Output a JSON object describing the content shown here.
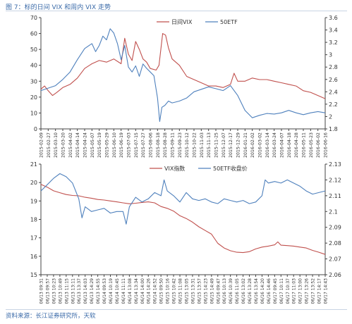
{
  "figure": {
    "title": "图 7：标的日间 VIX 和周内 VIX 走势",
    "source": "资料来源：长江证券研究所，天软"
  },
  "colors": {
    "vix": "#c0504d",
    "etf": "#4f81bd",
    "axis": "#444444",
    "text": "#333333",
    "accent": "#3a6aa8"
  },
  "chart_data": [
    {
      "type": "line",
      "legend_position": "top",
      "grid": false,
      "x_tick_labels": [
        "2015-02-09",
        "2015-02-27",
        "2015-03-10",
        "2015-03-20",
        "2015-04-02",
        "2015-04-14",
        "2015-04-24",
        "2015-05-07",
        "2015-05-19",
        "2015-05-29",
        "2015-06-10",
        "2015-06-19",
        "2015-07-03",
        "2015-07-15",
        "2015-07-27",
        "2015-08-06",
        "2015-08-18",
        "2015-08-28",
        "2015-09-11",
        "2015-09-23",
        "2015-10-12",
        "2015-10-22",
        "2015-11-03",
        "2015-11-13",
        "2015-11-25",
        "2015-12-07",
        "2015-12-17",
        "2015-12-29",
        "2016-01-21",
        "2016-02-02",
        "2016-03-02",
        "2016-03-14",
        "2016-03-24",
        "2016-04-07",
        "2016-04-18",
        "2016-04-28",
        "2016-05-11",
        "2016-05-23",
        "2016-06-02",
        "2016-06-16"
      ],
      "y_left": {
        "min": 0,
        "max": 70,
        "ticks": [
          0,
          10,
          20,
          30,
          40,
          50,
          60,
          70
        ]
      },
      "y_right": {
        "min": 1.8,
        "max": 3.6,
        "ticks": [
          "1.8",
          "2",
          "2.2",
          "2.4",
          "2.6",
          "2.8",
          "3",
          "3.2",
          "3.4",
          "3.6"
        ]
      },
      "series": [
        {
          "name": "日间VIX",
          "axis": "left",
          "values": [
            [
              0,
              25
            ],
            [
              0.5,
              27
            ],
            [
              1,
              24
            ],
            [
              1.6,
              21
            ],
            [
              2.2,
              23
            ],
            [
              3,
              26
            ],
            [
              4,
              28
            ],
            [
              5,
              32
            ],
            [
              6,
              38
            ],
            [
              7,
              41
            ],
            [
              8,
              43
            ],
            [
              9,
              42
            ],
            [
              10,
              44
            ],
            [
              11,
              41
            ],
            [
              11.5,
              57
            ],
            [
              12,
              47
            ],
            [
              12.5,
              43
            ],
            [
              13,
              55
            ],
            [
              13.5,
              50
            ],
            [
              14,
              44
            ],
            [
              14.5,
              42
            ],
            [
              15,
              38
            ],
            [
              15.8,
              37
            ],
            [
              16.2,
              40
            ],
            [
              16.7,
              60
            ],
            [
              17.1,
              59
            ],
            [
              17.5,
              51
            ],
            [
              18,
              44
            ],
            [
              19,
              40
            ],
            [
              20,
              33
            ],
            [
              21,
              31
            ],
            [
              22,
              29
            ],
            [
              23,
              27
            ],
            [
              24,
              27
            ],
            [
              25,
              26
            ],
            [
              26,
              28
            ],
            [
              26.5,
              35
            ],
            [
              27,
              30
            ],
            [
              28,
              30
            ],
            [
              29,
              32
            ],
            [
              30,
              31
            ],
            [
              31,
              31
            ],
            [
              32,
              30
            ],
            [
              33,
              29
            ],
            [
              34,
              28
            ],
            [
              35,
              27
            ],
            [
              36,
              24
            ],
            [
              37,
              23
            ],
            [
              38,
              21
            ],
            [
              39,
              19
            ]
          ]
        },
        {
          "name": "50ETF",
          "axis": "right",
          "values": [
            [
              0,
              2.42
            ],
            [
              1,
              2.46
            ],
            [
              2,
              2.5
            ],
            [
              3,
              2.6
            ],
            [
              4,
              2.72
            ],
            [
              5,
              2.92
            ],
            [
              6,
              3.1
            ],
            [
              7,
              3.18
            ],
            [
              7.5,
              3.05
            ],
            [
              8,
              3.15
            ],
            [
              8.5,
              3.3
            ],
            [
              9,
              3.24
            ],
            [
              9.5,
              3.42
            ],
            [
              10,
              3.35
            ],
            [
              10.5,
              3.18
            ],
            [
              11,
              2.92
            ],
            [
              11.5,
              3.15
            ],
            [
              12,
              2.8
            ],
            [
              12.5,
              2.72
            ],
            [
              13,
              2.82
            ],
            [
              13.5,
              2.65
            ],
            [
              14,
              2.85
            ],
            [
              14.5,
              2.78
            ],
            [
              15,
              2.72
            ],
            [
              15.5,
              2.66
            ],
            [
              16,
              2.3
            ],
            [
              16.3,
              1.92
            ],
            [
              16.6,
              2.15
            ],
            [
              17,
              2.18
            ],
            [
              17.5,
              2.25
            ],
            [
              18,
              2.22
            ],
            [
              19,
              2.25
            ],
            [
              20,
              2.3
            ],
            [
              21,
              2.4
            ],
            [
              22,
              2.44
            ],
            [
              23,
              2.48
            ],
            [
              24,
              2.45
            ],
            [
              25,
              2.42
            ],
            [
              26,
              2.5
            ],
            [
              27,
              2.34
            ],
            [
              28,
              2.1
            ],
            [
              29,
              1.98
            ],
            [
              30,
              2.02
            ],
            [
              31,
              2.05
            ],
            [
              32,
              2.04
            ],
            [
              33,
              2.06
            ],
            [
              34,
              2.1
            ],
            [
              35,
              2.06
            ],
            [
              36,
              2.03
            ],
            [
              37,
              2.06
            ],
            [
              38,
              2.08
            ],
            [
              39,
              2.06
            ]
          ]
        }
      ]
    },
    {
      "type": "line",
      "legend_position": "top",
      "grid": false,
      "x_tick_labels": [
        "06/13 09:31",
        "06/13 09:57",
        "06/13 10:23",
        "06/13 10:49",
        "06/13 11:15",
        "06/13 13:11",
        "06/13 13:37",
        "06/13 14:03",
        "06/13 14:29",
        "06/13 14:55",
        "06/14 09:53",
        "06/14 10:19",
        "06/14 10:45",
        "06/14 11:11",
        "06/14 13:08",
        "06/14 13:34",
        "06/14 14:00",
        "06/14 14:26",
        "06/14 14:52",
        "06/15 09:50",
        "06/15 10:16",
        "06/15 10:42",
        "06/15 11:08",
        "06/15 13:05",
        "06/15 13:31",
        "06/15 13:57",
        "06/15 14:23",
        "06/15 14:49",
        "06/16 09:47",
        "06/16 10:13",
        "06/16 10:39",
        "06/16 11:05",
        "06/16 13:02",
        "06/16 13:28",
        "06/16 13:54",
        "06/16 14:20",
        "06/16 14:46",
        "06/17 09:45",
        "06/17 10:11",
        "06/17 10:37",
        "06/17 11:03",
        "06/17 13:00",
        "06/17 13:26",
        "06/17 13:52",
        "06/17 14:17",
        "06/17 14:43"
      ],
      "y_left": {
        "min": 15,
        "max": 21,
        "ticks": [
          15,
          16,
          17,
          18,
          19,
          20,
          21
        ]
      },
      "y_right": {
        "min": 2.06,
        "max": 2.13,
        "ticks": [
          "2.06",
          "2.07",
          "2.08",
          "2.09",
          "2.1",
          "2.11",
          "2.12",
          "2.13"
        ]
      },
      "series": [
        {
          "name": "VIX指数",
          "axis": "left",
          "values": [
            [
              0,
              19.9
            ],
            [
              1,
              19.75
            ],
            [
              2,
              19.55
            ],
            [
              3,
              19.45
            ],
            [
              4,
              19.35
            ],
            [
              5,
              19.3
            ],
            [
              6,
              19.28
            ],
            [
              7,
              19.2
            ],
            [
              8,
              19.15
            ],
            [
              9,
              19.08
            ],
            [
              10,
              19.05
            ],
            [
              11,
              19.0
            ],
            [
              12,
              18.95
            ],
            [
              13,
              18.9
            ],
            [
              14,
              18.85
            ],
            [
              15,
              18.88
            ],
            [
              16,
              18.92
            ],
            [
              17,
              18.95
            ],
            [
              18,
              18.9
            ],
            [
              19,
              18.7
            ],
            [
              20,
              18.6
            ],
            [
              21,
              18.45
            ],
            [
              22,
              18.2
            ],
            [
              23,
              18.05
            ],
            [
              24,
              17.85
            ],
            [
              25,
              17.6
            ],
            [
              26,
              17.4
            ],
            [
              27,
              17.2
            ],
            [
              28,
              16.7
            ],
            [
              29,
              16.45
            ],
            [
              30,
              16.3
            ],
            [
              31,
              16.22
            ],
            [
              32,
              16.2
            ],
            [
              33,
              16.25
            ],
            [
              34,
              16.4
            ],
            [
              35,
              16.5
            ],
            [
              36,
              16.55
            ],
            [
              37,
              16.62
            ],
            [
              37.5,
              16.78
            ],
            [
              38,
              16.6
            ],
            [
              39,
              16.58
            ],
            [
              40,
              16.55
            ],
            [
              41,
              16.5
            ],
            [
              42,
              16.45
            ],
            [
              43,
              16.32
            ],
            [
              44,
              16.22
            ],
            [
              45,
              16.1
            ]
          ]
        },
        {
          "name": "50ETF收盘价",
          "axis": "right",
          "values": [
            [
              0,
              2.113
            ],
            [
              1,
              2.117
            ],
            [
              2,
              2.121
            ],
            [
              3,
              2.124
            ],
            [
              4,
              2.122
            ],
            [
              5,
              2.118
            ],
            [
              6,
              2.108
            ],
            [
              6.5,
              2.096
            ],
            [
              7,
              2.103
            ],
            [
              8,
              2.1
            ],
            [
              9,
              2.101
            ],
            [
              10,
              2.102
            ],
            [
              11,
              2.099
            ],
            [
              12,
              2.1
            ],
            [
              13,
              2.1
            ],
            [
              13.5,
              2.092
            ],
            [
              14,
              2.103
            ],
            [
              15,
              2.109
            ],
            [
              16,
              2.106
            ],
            [
              17,
              2.108
            ],
            [
              18,
              2.112
            ],
            [
              19,
              2.11
            ],
            [
              19.5,
              2.12
            ],
            [
              20,
              2.113
            ],
            [
              21,
              2.11
            ],
            [
              22,
              2.106
            ],
            [
              23,
              2.112
            ],
            [
              24,
              2.108
            ],
            [
              25,
              2.107
            ],
            [
              26,
              2.108
            ],
            [
              27,
              2.106
            ],
            [
              28,
              2.105
            ],
            [
              29,
              2.108
            ],
            [
              30,
              2.107
            ],
            [
              31,
              2.106
            ],
            [
              32,
              2.107
            ],
            [
              33,
              2.105
            ],
            [
              34,
              2.106
            ],
            [
              35,
              2.11
            ],
            [
              35.5,
              2.12
            ],
            [
              36,
              2.118
            ],
            [
              37,
              2.119
            ],
            [
              38,
              2.118
            ],
            [
              39,
              2.12
            ],
            [
              40,
              2.118
            ],
            [
              41,
              2.116
            ],
            [
              42,
              2.113
            ],
            [
              43,
              2.111
            ],
            [
              44,
              2.112
            ],
            [
              45,
              2.113
            ]
          ]
        }
      ]
    }
  ]
}
